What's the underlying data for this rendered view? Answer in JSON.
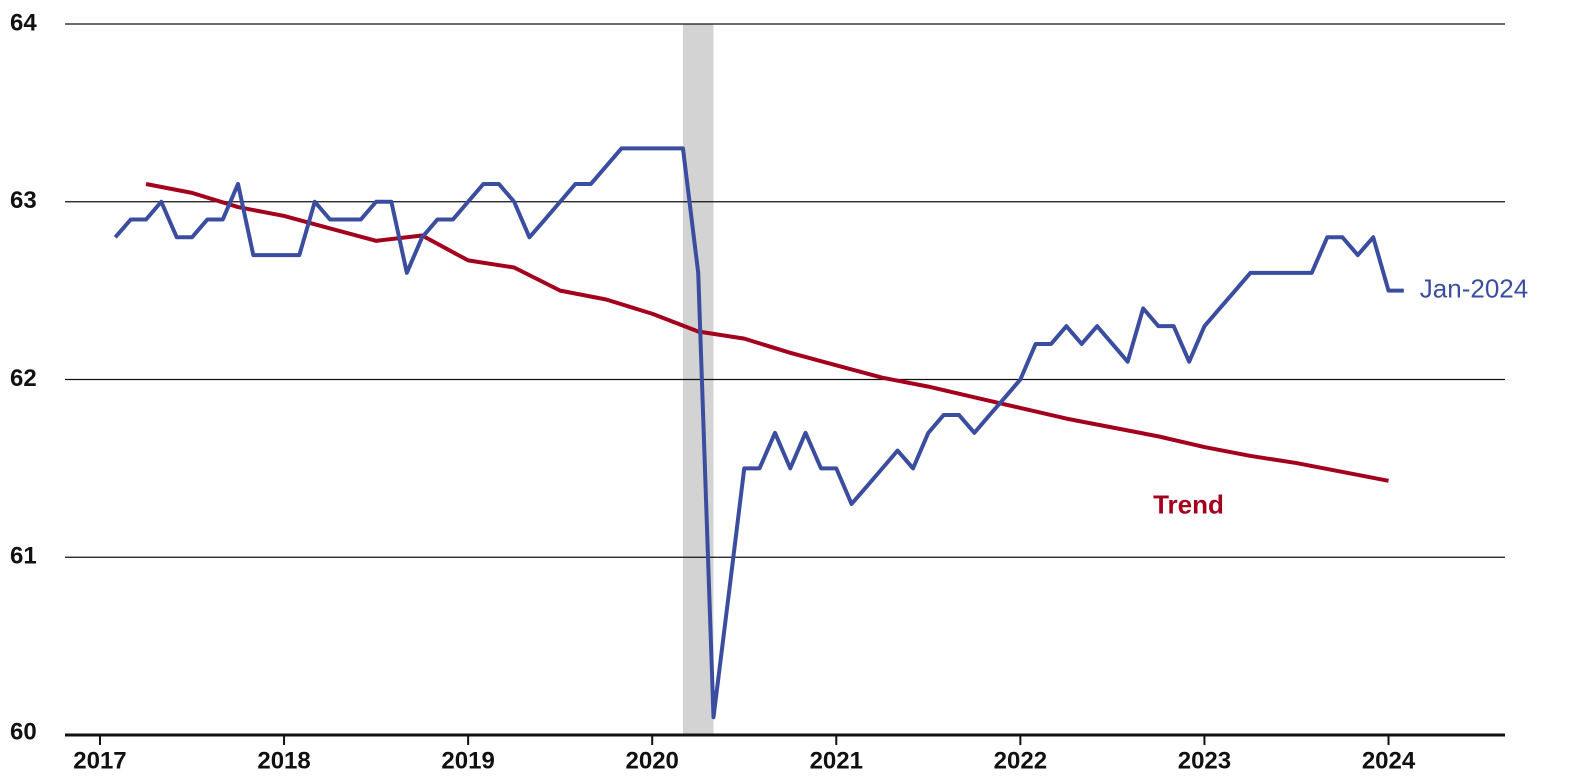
{
  "chart_data": {
    "type": "line",
    "x": [
      2017.083,
      2017.167,
      2017.25,
      2017.333,
      2017.417,
      2017.5,
      2017.583,
      2017.667,
      2017.75,
      2017.833,
      2017.917,
      2018.0,
      2018.083,
      2018.167,
      2018.25,
      2018.333,
      2018.417,
      2018.5,
      2018.583,
      2018.667,
      2018.75,
      2018.833,
      2018.917,
      2019.0,
      2019.083,
      2019.167,
      2019.25,
      2019.333,
      2019.417,
      2019.5,
      2019.583,
      2019.667,
      2019.75,
      2019.833,
      2019.917,
      2020.0,
      2020.083,
      2020.167,
      2020.25,
      2020.333,
      2020.417,
      2020.5,
      2020.583,
      2020.667,
      2020.75,
      2020.833,
      2020.917,
      2021.0,
      2021.083,
      2021.167,
      2021.25,
      2021.333,
      2021.417,
      2021.5,
      2021.583,
      2021.667,
      2021.75,
      2021.833,
      2021.917,
      2022.0,
      2022.083,
      2022.167,
      2022.25,
      2022.333,
      2022.417,
      2022.5,
      2022.583,
      2022.667,
      2022.75,
      2022.833,
      2022.917,
      2023.0,
      2023.083,
      2023.167,
      2023.25,
      2023.333,
      2023.417,
      2023.5,
      2023.583,
      2023.667,
      2023.75,
      2023.833,
      2023.917,
      2024.0,
      2024.083
    ],
    "series": [
      {
        "color": "#3b4d9e",
        "values": [
          62.8,
          62.9,
          62.9,
          63.0,
          62.8,
          62.8,
          62.9,
          62.9,
          63.1,
          62.7,
          62.7,
          62.7,
          62.7,
          63.0,
          62.9,
          62.9,
          62.9,
          63.0,
          63.0,
          62.6,
          62.8,
          62.9,
          62.9,
          63.0,
          63.1,
          63.1,
          63.0,
          62.8,
          62.9,
          63.0,
          63.1,
          63.1,
          63.2,
          63.3,
          63.3,
          63.3,
          63.3,
          63.3,
          62.6,
          60.1,
          60.8,
          61.5,
          61.5,
          61.7,
          61.5,
          61.7,
          61.5,
          61.5,
          61.3,
          61.4,
          61.5,
          61.6,
          61.5,
          61.7,
          61.8,
          61.8,
          61.7,
          61.8,
          61.9,
          62.0,
          62.2,
          62.2,
          62.3,
          62.2,
          62.3,
          62.2,
          62.1,
          62.4,
          62.3,
          62.3,
          62.1,
          62.3,
          62.4,
          62.5,
          62.6,
          62.6,
          62.6,
          62.6,
          62.6,
          62.8,
          62.8,
          62.7,
          62.8,
          62.5,
          62.5
        ]
      }
    ],
    "trend": {
      "color": "#a3001e",
      "x": [
        2017.25,
        2017.5,
        2017.75,
        2018.0,
        2018.25,
        2018.5,
        2018.75,
        2019.0,
        2019.25,
        2019.5,
        2019.75,
        2020.0,
        2020.25,
        2020.5,
        2020.75,
        2021.0,
        2021.25,
        2021.5,
        2021.75,
        2022.0,
        2022.25,
        2022.5,
        2022.75,
        2023.0,
        2023.25,
        2023.5,
        2023.75,
        2024.0
      ],
      "values": [
        63.1,
        63.05,
        62.97,
        62.92,
        62.85,
        62.78,
        62.81,
        62.67,
        62.63,
        62.5,
        62.45,
        62.37,
        62.27,
        62.23,
        62.15,
        62.08,
        62.01,
        61.96,
        61.9,
        61.84,
        61.78,
        61.73,
        61.68,
        61.62,
        61.57,
        61.53,
        61.48,
        61.43
      ]
    },
    "recession": [
      2020.167,
      2020.333
    ],
    "annotations": [
      "Jan-2024",
      "Trend"
    ],
    "xlim": [
      2016.81,
      2024.66
    ],
    "xticks": [
      2017,
      2018,
      2019,
      2020,
      2021,
      2022,
      2023,
      2024
    ],
    "ylim": [
      60,
      64
    ],
    "yticks": [
      60,
      61,
      62,
      63,
      64
    ],
    "grid": true
  }
}
